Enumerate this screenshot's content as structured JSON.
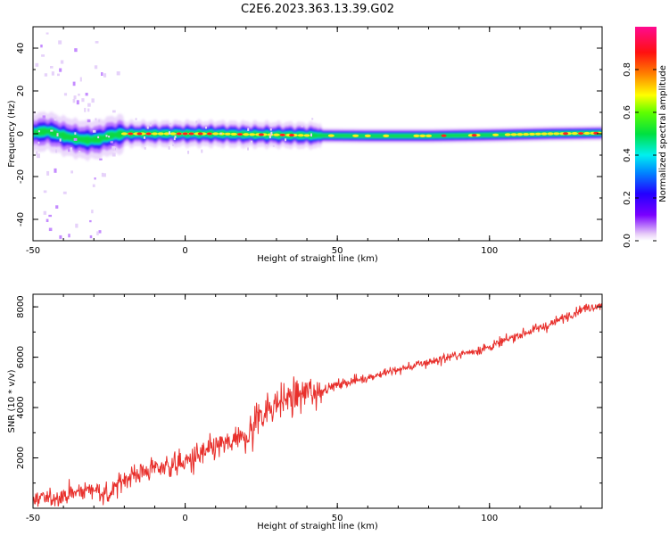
{
  "title": "C2E6.2023.363.13.39.G02",
  "chart_data": [
    {
      "type": "heatmap",
      "xlabel": "Height of straight line (km)",
      "ylabel": "Frequency (Hz)",
      "xlim": [
        -50,
        137
      ],
      "ylim": [
        -50,
        50
      ],
      "xticks": [
        -50,
        0,
        50,
        100
      ],
      "yticks": [
        -40,
        -20,
        0,
        20,
        40
      ],
      "colorbar": {
        "label": "Normalized spectral amplitude",
        "range": [
          0,
          1
        ],
        "ticks": [
          "0.0",
          "0.2",
          "0.4",
          "0.6",
          "0.8"
        ]
      },
      "ridge": {
        "x": [
          -50,
          -45,
          -40,
          -35,
          -32,
          -28,
          -25,
          -20,
          -10,
          0,
          10,
          20,
          30,
          40,
          60,
          80,
          100,
          120,
          137
        ],
        "freq": [
          0.5,
          1.2,
          -1,
          -2.5,
          -3,
          -2.5,
          -1,
          0,
          0,
          0,
          0,
          -0.3,
          -0.5,
          -0.8,
          -1,
          -1,
          -0.6,
          0,
          0.3
        ]
      },
      "hot_spots_x": [
        -18,
        -15,
        -12,
        -2,
        0,
        2,
        5,
        8,
        18,
        25,
        32,
        35,
        85,
        95,
        125,
        130,
        135
      ]
    },
    {
      "type": "line",
      "xlabel": "Height of straight line (km)",
      "ylabel": "SNR (10 * v/v)",
      "xlim": [
        -50,
        137
      ],
      "ylim": [
        0,
        8500
      ],
      "xticks": [
        -50,
        0,
        50,
        100
      ],
      "yticks": [
        2000,
        4000,
        6000,
        8000
      ],
      "series": [
        {
          "color": "#e8302c",
          "x": [
            -50,
            -40,
            -30,
            -25,
            -20,
            -10,
            0,
            10,
            20,
            25,
            30,
            35,
            40,
            45,
            50,
            60,
            70,
            80,
            90,
            100,
            110,
            120,
            130,
            137
          ],
          "values": [
            300,
            500,
            800,
            500,
            1200,
            1600,
            1800,
            2400,
            2800,
            3800,
            4200,
            4400,
            4600,
            4700,
            4900,
            5200,
            5500,
            5800,
            6100,
            6400,
            6900,
            7300,
            7900,
            8100
          ]
        }
      ]
    }
  ]
}
